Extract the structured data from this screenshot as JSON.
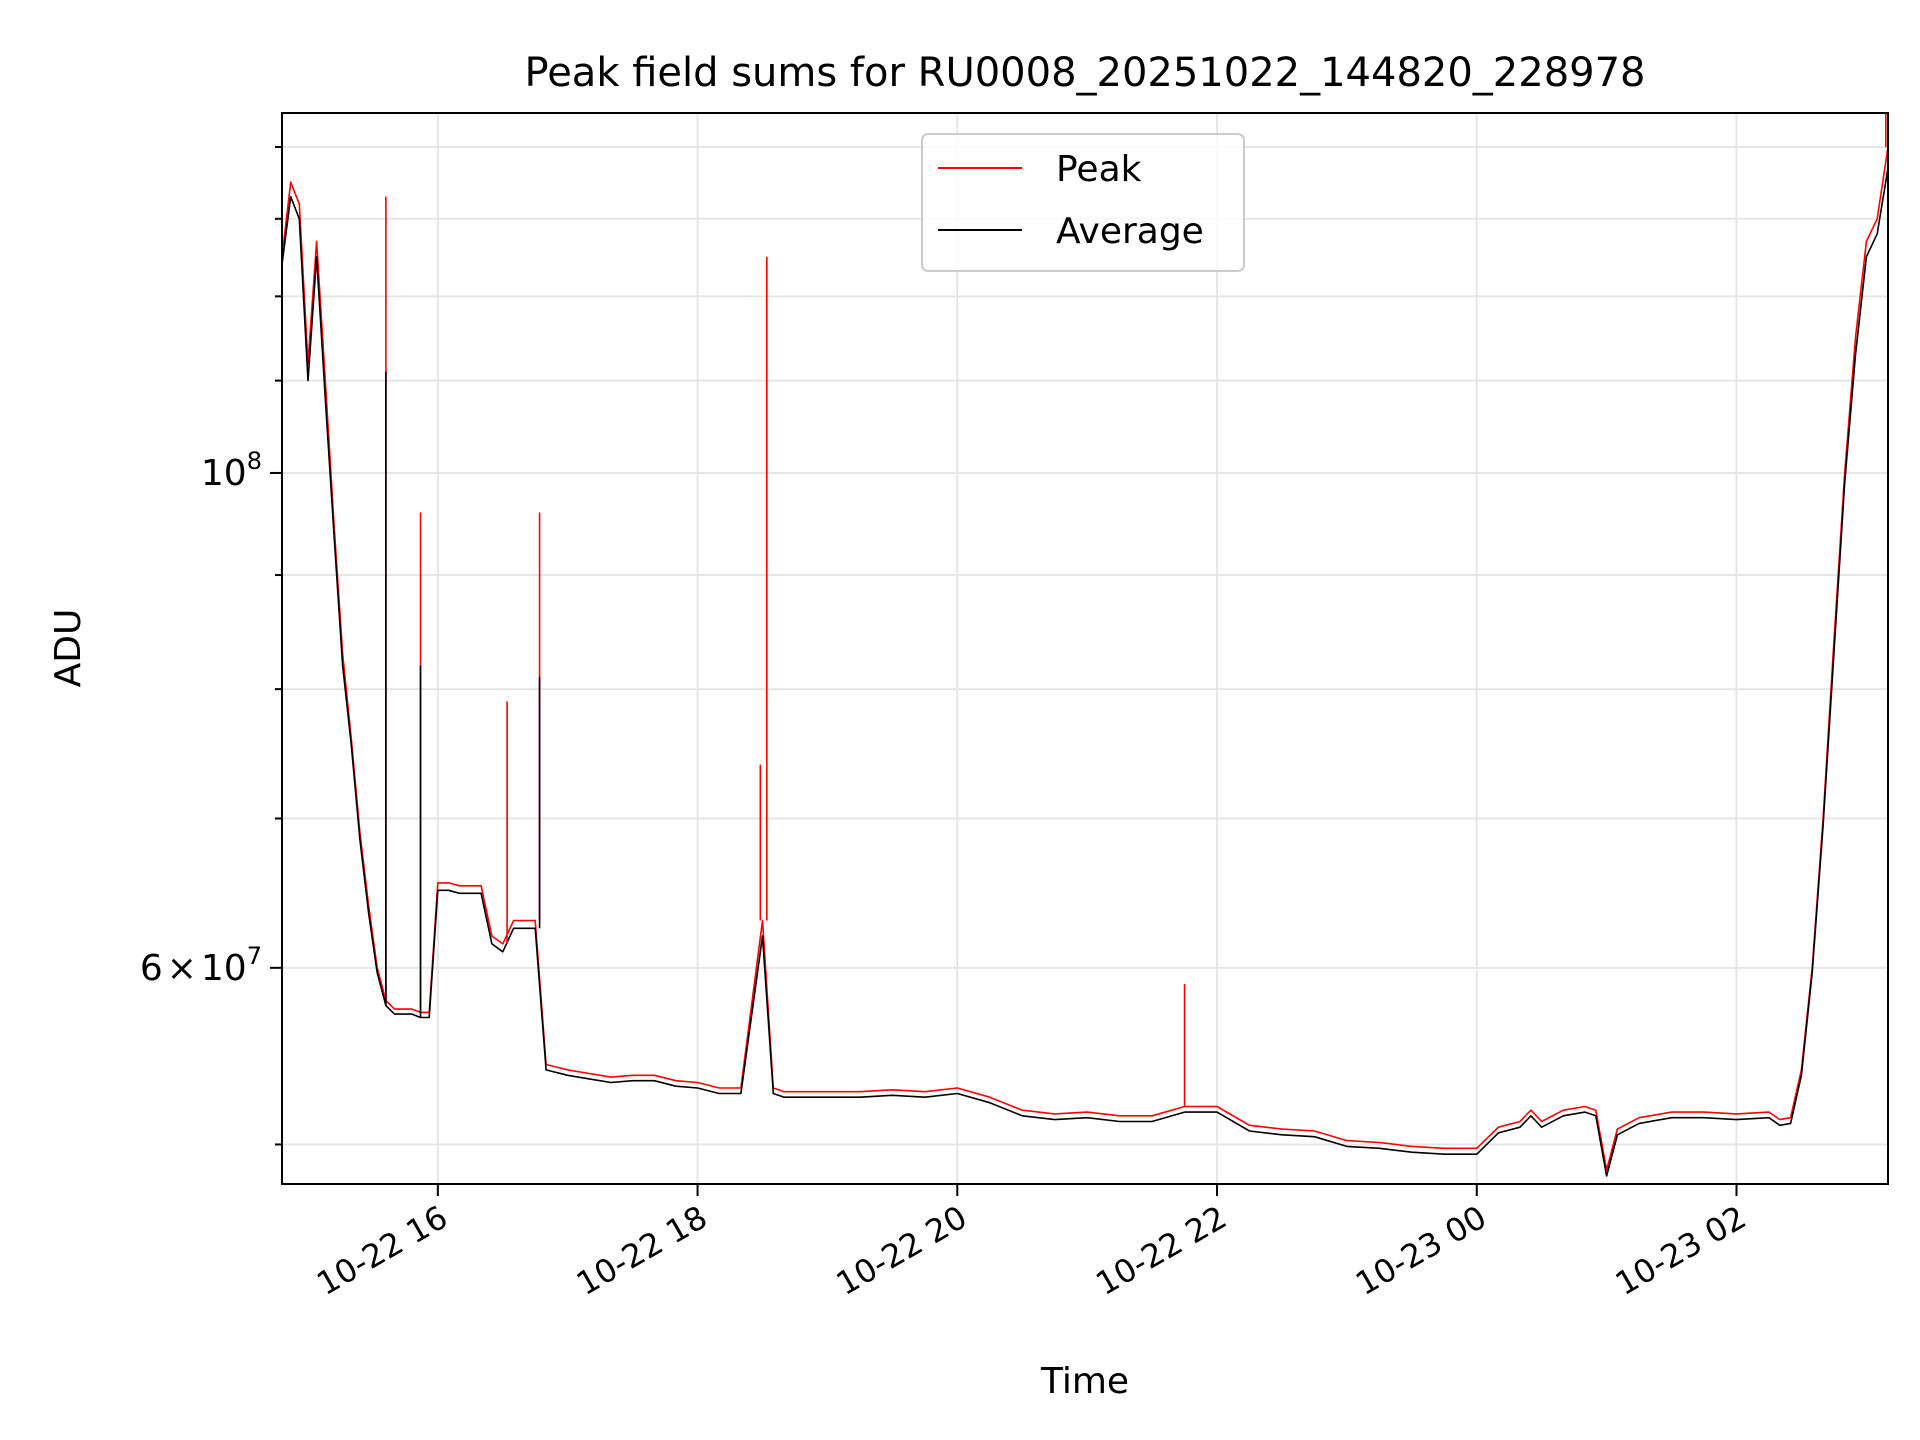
{
  "chart_data": {
    "type": "line",
    "title": "Peak field sums for RU0008_20251022_144820_228978",
    "xlabel": "Time",
    "ylabel": "ADU",
    "yscale": "log",
    "grid": true,
    "legend": "upper center",
    "xlim": [
      "2025-10-22 14:48",
      "2025-10-23 03:10"
    ],
    "ylim": [
      48000000,
      145000000
    ],
    "x_ticks": [
      "10-22 16",
      "10-22 18",
      "10-22 20",
      "10-22 22",
      "10-23 00",
      "10-23 02"
    ],
    "y_tick_labels": [
      {
        "value": 100000000,
        "base": "10",
        "exp": "8"
      },
      {
        "value": 60000000,
        "mant": "6",
        "times": "×",
        "base": "10",
        "exp": "7"
      }
    ],
    "x": [
      "2025-10-22 14:48",
      "2025-10-22 14:52",
      "2025-10-22 14:56",
      "2025-10-22 15:00",
      "2025-10-22 15:04",
      "2025-10-22 15:08",
      "2025-10-22 15:12",
      "2025-10-22 15:16",
      "2025-10-22 15:20",
      "2025-10-22 15:24",
      "2025-10-22 15:28",
      "2025-10-22 15:32",
      "2025-10-22 15:36",
      "2025-10-22 15:40",
      "2025-10-22 15:44",
      "2025-10-22 15:48",
      "2025-10-22 15:52",
      "2025-10-22 15:56",
      "2025-10-22 16:00",
      "2025-10-22 16:05",
      "2025-10-22 16:10",
      "2025-10-22 16:15",
      "2025-10-22 16:20",
      "2025-10-22 16:25",
      "2025-10-22 16:30",
      "2025-10-22 16:35",
      "2025-10-22 16:40",
      "2025-10-22 16:45",
      "2025-10-22 16:50",
      "2025-10-22 17:00",
      "2025-10-22 17:10",
      "2025-10-22 17:20",
      "2025-10-22 17:30",
      "2025-10-22 17:40",
      "2025-10-22 17:50",
      "2025-10-22 18:00",
      "2025-10-22 18:10",
      "2025-10-22 18:20",
      "2025-10-22 18:30",
      "2025-10-22 18:35",
      "2025-10-22 18:40",
      "2025-10-22 18:50",
      "2025-10-22 19:00",
      "2025-10-22 19:15",
      "2025-10-22 19:30",
      "2025-10-22 19:45",
      "2025-10-22 20:00",
      "2025-10-22 20:15",
      "2025-10-22 20:30",
      "2025-10-22 20:45",
      "2025-10-22 21:00",
      "2025-10-22 21:15",
      "2025-10-22 21:30",
      "2025-10-22 21:45",
      "2025-10-22 22:00",
      "2025-10-22 22:15",
      "2025-10-22 22:30",
      "2025-10-22 22:45",
      "2025-10-22 23:00",
      "2025-10-22 23:15",
      "2025-10-22 23:30",
      "2025-10-22 23:45",
      "2025-10-23 00:00",
      "2025-10-23 00:10",
      "2025-10-23 00:20",
      "2025-10-23 00:25",
      "2025-10-23 00:30",
      "2025-10-23 00:40",
      "2025-10-23 00:50",
      "2025-10-23 00:55",
      "2025-10-23 01:00",
      "2025-10-23 01:05",
      "2025-10-23 01:15",
      "2025-10-23 01:30",
      "2025-10-23 01:45",
      "2025-10-23 02:00",
      "2025-10-23 02:15",
      "2025-10-23 02:20",
      "2025-10-23 02:25",
      "2025-10-23 02:30",
      "2025-10-23 02:35",
      "2025-10-23 02:40",
      "2025-10-23 02:45",
      "2025-10-23 02:50",
      "2025-10-23 02:55",
      "2025-10-23 03:00",
      "2025-10-23 03:05",
      "2025-10-23 03:10"
    ],
    "series": [
      {
        "name": "Peak",
        "color": "#ff0000",
        "values": [
          125000000,
          135000000,
          132000000,
          112000000,
          127000000,
          110000000,
          95000000,
          83000000,
          76000000,
          69000000,
          64000000,
          60000000,
          58000000,
          57500000,
          57500000,
          57500000,
          57300000,
          57300000,
          65500000,
          65500000,
          65300000,
          65300000,
          65300000,
          62000000,
          61500000,
          63000000,
          63000000,
          63000000,
          54300000,
          54000000,
          53800000,
          53600000,
          53700000,
          53700000,
          53400000,
          53300000,
          53000000,
          53000000,
          63000000,
          53000000,
          52800000,
          52800000,
          52800000,
          52800000,
          52900000,
          52800000,
          53000000,
          52500000,
          51800000,
          51600000,
          51700000,
          51500000,
          51500000,
          52000000,
          52000000,
          51000000,
          50800000,
          50700000,
          50200000,
          50100000,
          49900000,
          49800000,
          49800000,
          50900000,
          51200000,
          51800000,
          51200000,
          51800000,
          52000000,
          51800000,
          48700000,
          50800000,
          51400000,
          51700000,
          51700000,
          51600000,
          51700000,
          51300000,
          51400000,
          54000000,
          60000000,
          70000000,
          84000000,
          100000000,
          115000000,
          127000000,
          130000000,
          140000000
        ]
      },
      {
        "name": "Average",
        "color": "#000000",
        "values": [
          124000000,
          133000000,
          130000000,
          110000000,
          125000000,
          108000000,
          94000000,
          82000000,
          75500000,
          68500000,
          63500000,
          59700000,
          57700000,
          57200000,
          57200000,
          57200000,
          57000000,
          57000000,
          65000000,
          65000000,
          64800000,
          64800000,
          64800000,
          61500000,
          61000000,
          62500000,
          62500000,
          62500000,
          54000000,
          53700000,
          53500000,
          53300000,
          53400000,
          53400000,
          53100000,
          53000000,
          52700000,
          52700000,
          62000000,
          52700000,
          52500000,
          52500000,
          52500000,
          52500000,
          52600000,
          52500000,
          52700000,
          52200000,
          51500000,
          51300000,
          51400000,
          51200000,
          51200000,
          51700000,
          51700000,
          50700000,
          50500000,
          50400000,
          49900000,
          49800000,
          49600000,
          49500000,
          49500000,
          50600000,
          50900000,
          51500000,
          50900000,
          51500000,
          51700000,
          51500000,
          48400000,
          50500000,
          51100000,
          51400000,
          51400000,
          51300000,
          51400000,
          51000000,
          51100000,
          53700000,
          59700000,
          69500000,
          83000000,
          99000000,
          113000000,
          125000000,
          128000000,
          137000000
        ]
      }
    ],
    "spikes": [
      {
        "series": "Peak",
        "x": "2025-10-22 15:36",
        "value": 133000000
      },
      {
        "series": "Average",
        "x": "2025-10-22 15:36",
        "value": 111000000
      },
      {
        "series": "Peak",
        "x": "2025-10-22 15:52",
        "value": 96000000
      },
      {
        "series": "Average",
        "x": "2025-10-22 15:52",
        "value": 82000000
      },
      {
        "series": "Peak",
        "x": "2025-10-22 16:32",
        "value": 79000000
      },
      {
        "series": "Peak",
        "x": "2025-10-22 16:47",
        "value": 96000000
      },
      {
        "series": "Average",
        "x": "2025-10-22 16:47",
        "value": 81000000
      },
      {
        "series": "Peak",
        "x": "2025-10-22 18:32",
        "value": 125000000
      },
      {
        "series": "Peak",
        "x": "2025-10-22 18:29",
        "value": 74000000
      },
      {
        "series": "Peak",
        "x": "2025-10-22 21:45",
        "value": 59000000
      },
      {
        "series": "Peak",
        "x": "2025-10-23 03:09",
        "value": 145000000
      }
    ]
  }
}
